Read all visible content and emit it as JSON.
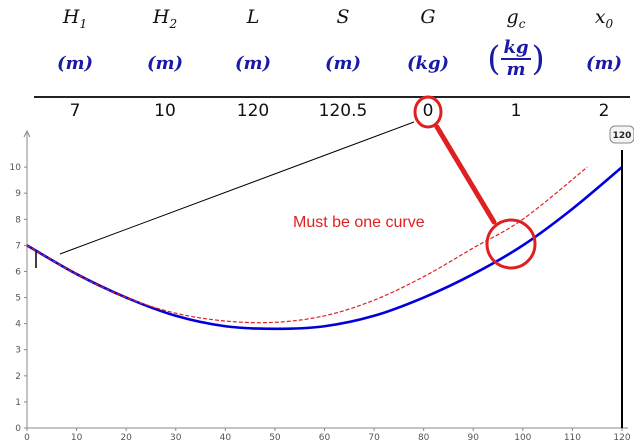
{
  "table": {
    "columns": [
      {
        "sym": "H",
        "sub": "1",
        "unit": "m",
        "value": "7"
      },
      {
        "sym": "H",
        "sub": "2",
        "unit": "m",
        "value": "10"
      },
      {
        "sym": "L",
        "sub": "",
        "unit": "m",
        "value": "120"
      },
      {
        "sym": "S",
        "sub": "",
        "unit": "m",
        "value": "120.5"
      },
      {
        "sym": "G",
        "sub": "",
        "unit": "kg",
        "value": "0"
      },
      {
        "sym": "g",
        "sub": "c",
        "unit_num": "kg",
        "unit_den": "m",
        "value": "1"
      },
      {
        "sym": "x",
        "sub": "0",
        "unit": "m",
        "value": "2"
      }
    ]
  },
  "annotation": {
    "text": "Must be one curve",
    "color": "#e02020"
  },
  "marker_badge": "120",
  "colors": {
    "solid_curve": "#0000dd",
    "dashed_curve": "#e02020",
    "leader_line": "#000000",
    "unit_text": "#1a1aa6"
  },
  "chart_data": {
    "type": "line",
    "title": "",
    "xlabel": "",
    "ylabel": "",
    "xlim": [
      0,
      120
    ],
    "ylim": [
      0,
      11
    ],
    "xticks": [
      0,
      10,
      20,
      30,
      40,
      50,
      60,
      70,
      80,
      90,
      100,
      110,
      120
    ],
    "yticks": [
      0,
      1,
      2,
      3,
      4,
      5,
      6,
      7,
      8,
      9,
      10
    ],
    "grid": false,
    "series": [
      {
        "style": "solid",
        "color": "#0000dd",
        "x": [
          0,
          10,
          20,
          30,
          40,
          50,
          60,
          70,
          80,
          90,
          100,
          110,
          120
        ],
        "y": [
          7.0,
          5.9,
          5.0,
          4.3,
          3.9,
          3.8,
          3.9,
          4.3,
          5.0,
          5.9,
          7.0,
          8.4,
          10.0
        ]
      },
      {
        "style": "dashed",
        "color": "#e02020",
        "x": [
          0,
          10,
          20,
          30,
          40,
          50,
          60,
          70,
          80,
          90,
          100,
          113
        ],
        "y": [
          7.0,
          5.9,
          5.0,
          4.4,
          4.1,
          4.05,
          4.3,
          4.9,
          5.8,
          6.9,
          8.0,
          10.0
        ]
      }
    ],
    "vertical_marker_x": 120
  }
}
